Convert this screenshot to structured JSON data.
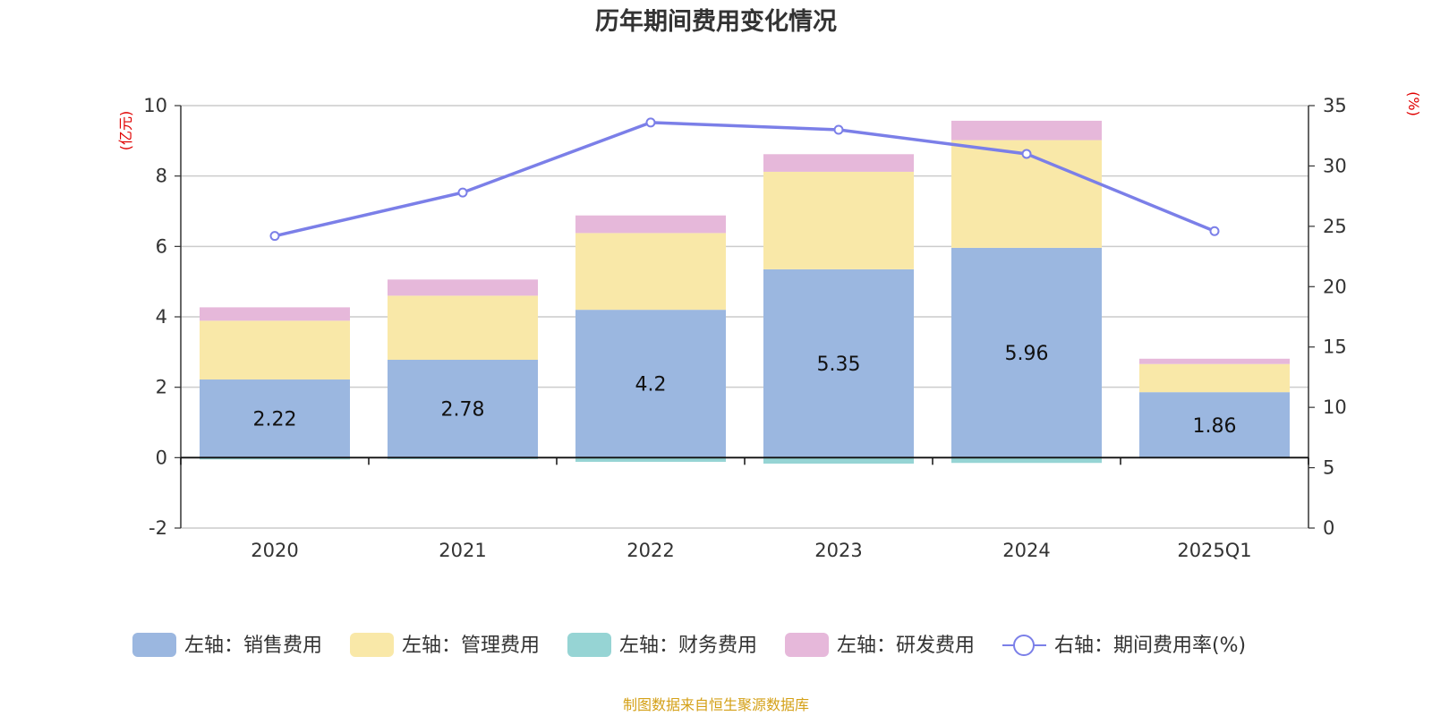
{
  "chart_data": {
    "type": "bar",
    "title": "历年期间费用变化情况",
    "categories": [
      "2020",
      "2021",
      "2022",
      "2023",
      "2024",
      "2025Q1"
    ],
    "left_axis": {
      "unit": "(亿元)",
      "ylim": [
        -2,
        10
      ],
      "ticks": [
        "10",
        "8",
        "6",
        "4",
        "2",
        "0",
        "-2"
      ]
    },
    "right_axis": {
      "unit": "(%)",
      "ylim": [
        0,
        35
      ],
      "ticks": [
        "35",
        "30",
        "25",
        "20",
        "15",
        "10",
        "5",
        "0"
      ]
    },
    "series": [
      {
        "name": "左轴：销售费用",
        "axis": "left",
        "kind": "bar",
        "color": "#9bb7e0",
        "values": [
          2.22,
          2.78,
          4.2,
          5.35,
          5.96,
          1.86
        ],
        "labels": [
          "2.22",
          "2.78",
          "4.2",
          "5.35",
          "5.96",
          "1.86"
        ]
      },
      {
        "name": "左轴：管理费用",
        "axis": "left",
        "kind": "bar",
        "color": "#f9e8a8",
        "values": [
          1.67,
          1.82,
          2.18,
          2.77,
          3.06,
          0.8
        ]
      },
      {
        "name": "左轴：财务费用",
        "axis": "left",
        "kind": "bar",
        "color": "#96d4d4",
        "values": [
          -0.05,
          -0.04,
          -0.12,
          -0.17,
          -0.15,
          -0.02
        ]
      },
      {
        "name": "左轴：研发费用",
        "axis": "left",
        "kind": "bar",
        "color": "#e6b8da",
        "values": [
          0.38,
          0.46,
          0.5,
          0.5,
          0.55,
          0.15
        ]
      },
      {
        "name": "右轴：期间费用率(%)",
        "axis": "right",
        "kind": "line",
        "color": "#7b7fe8",
        "values": [
          24.2,
          27.8,
          33.6,
          33.0,
          31.0,
          24.6
        ]
      }
    ],
    "grid": true,
    "legend_position": "bottom"
  },
  "footer": {
    "source": "制图数据来自恒生聚源数据库"
  }
}
